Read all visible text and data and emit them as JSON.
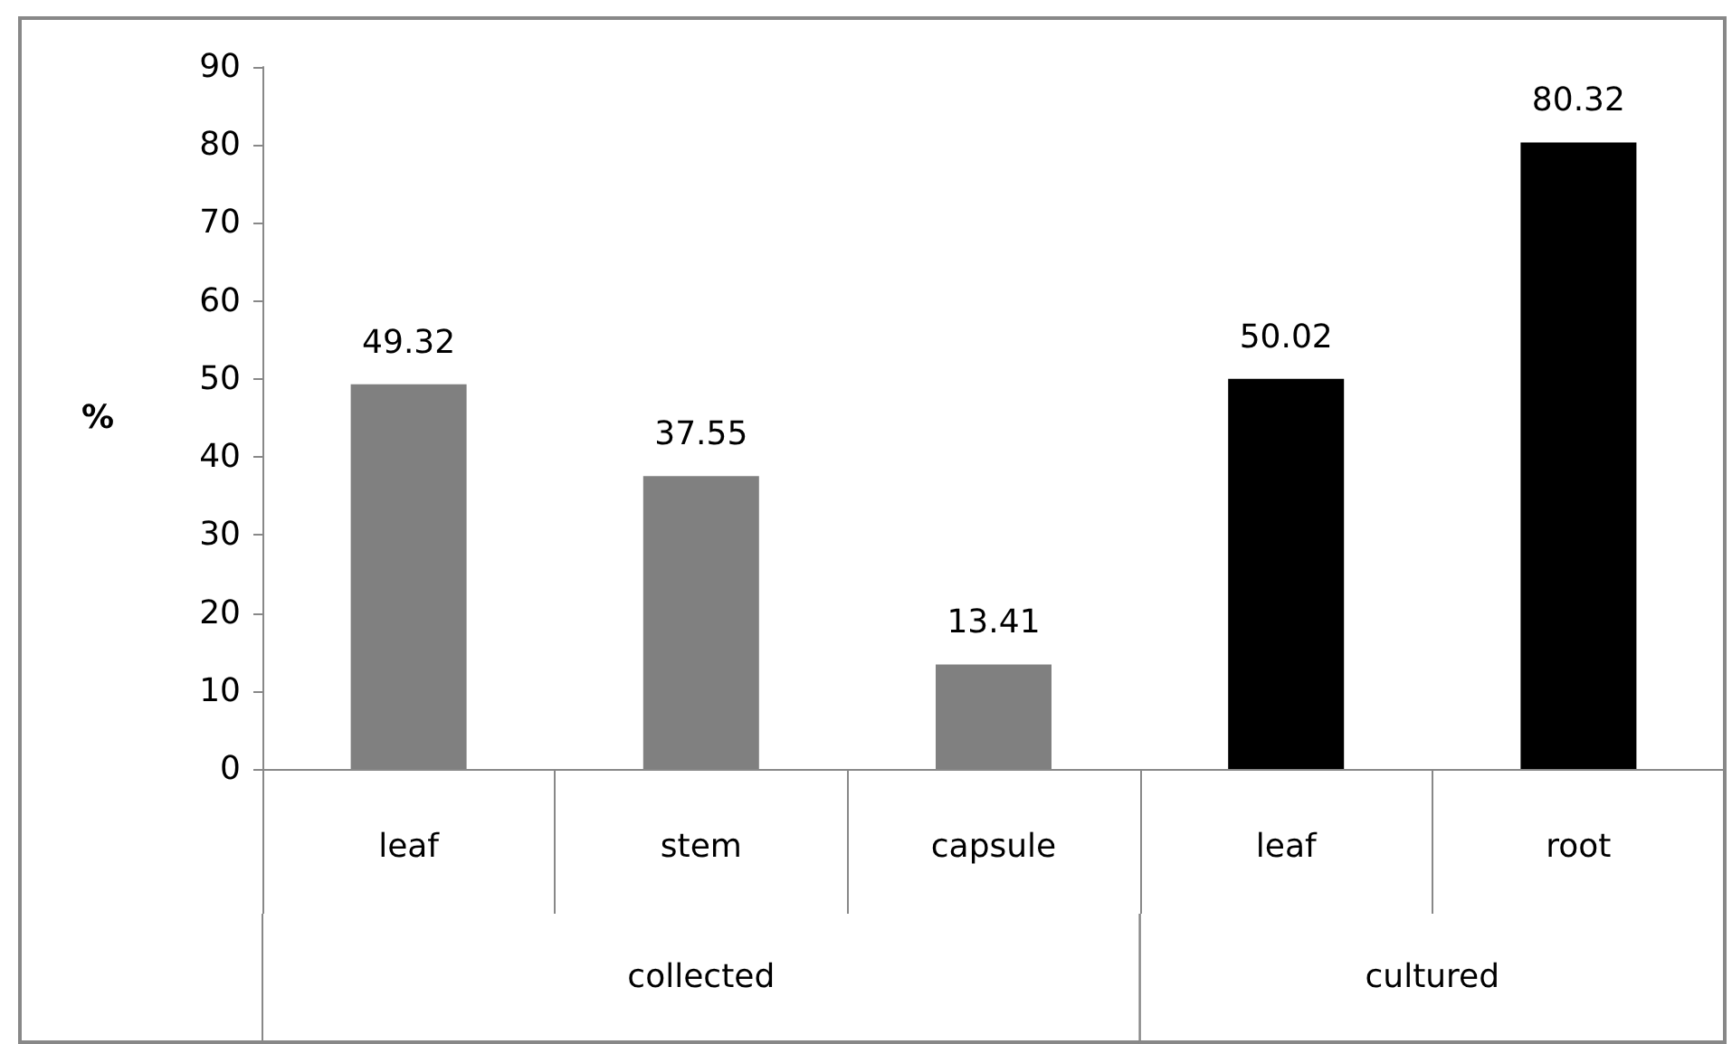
{
  "chart_data": {
    "type": "bar",
    "ylabel": "%",
    "categories": [
      "leaf",
      "stem",
      "capsule",
      "leaf",
      "root"
    ],
    "values": [
      49.32,
      37.55,
      13.41,
      50.02,
      80.32
    ],
    "colors": [
      "#808080",
      "#808080",
      "#808080",
      "#000000",
      "#000000"
    ],
    "annotations": [
      "collected",
      "cultured"
    ],
    "ylim": [
      0,
      90
    ],
    "yticks": [
      0,
      10,
      20,
      30,
      40,
      50,
      60,
      70,
      80,
      90
    ],
    "data_labels": true
  }
}
